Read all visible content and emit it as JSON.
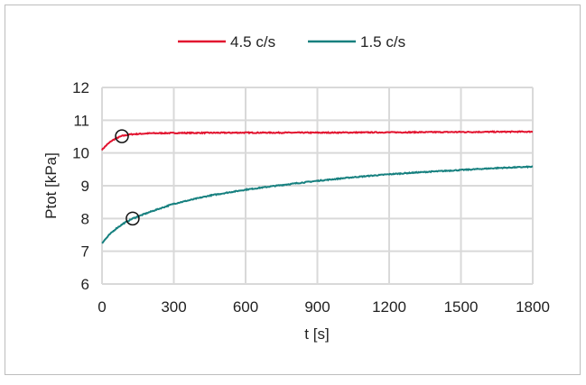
{
  "chart_data": {
    "type": "line",
    "title": "",
    "xlabel": "t [s]",
    "ylabel": "Ptot [kPa]",
    "xlim": [
      0,
      1800
    ],
    "ylim": [
      6,
      12
    ],
    "xticks": [
      0,
      300,
      600,
      900,
      1200,
      1500,
      1800
    ],
    "yticks": [
      6,
      7,
      8,
      9,
      10,
      11,
      12
    ],
    "grid": true,
    "legend_position": "top",
    "series": [
      {
        "name": "4.5 c/s",
        "color": "#E2132F",
        "x": [
          0,
          20,
          40,
          60,
          83,
          120,
          200,
          300,
          600,
          900,
          1200,
          1500,
          1800
        ],
        "y": [
          10.1,
          10.25,
          10.37,
          10.45,
          10.52,
          10.57,
          10.6,
          10.61,
          10.62,
          10.62,
          10.63,
          10.64,
          10.65
        ],
        "marker": {
          "x": 83,
          "y": 10.51
        }
      },
      {
        "name": "1.5 c/s",
        "color": "#16807F",
        "x": [
          0,
          30,
          60,
          90,
          128,
          200,
          300,
          450,
          600,
          750,
          900,
          1050,
          1200,
          1350,
          1500,
          1650,
          1800
        ],
        "y": [
          7.25,
          7.5,
          7.7,
          7.85,
          8.0,
          8.2,
          8.45,
          8.7,
          8.88,
          9.02,
          9.15,
          9.26,
          9.35,
          9.42,
          9.48,
          9.54,
          9.58
        ],
        "marker": {
          "x": 128,
          "y": 8.0
        }
      }
    ]
  }
}
